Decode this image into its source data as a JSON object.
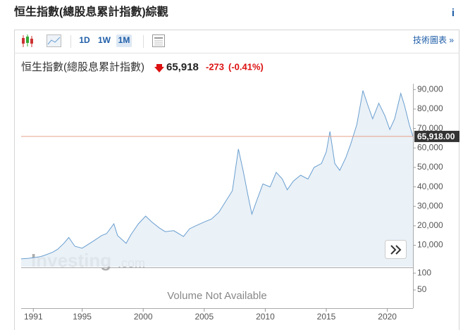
{
  "page": {
    "title": "恒生指數(總股息累計指數)綜觀",
    "info": "i"
  },
  "toolbar": {
    "ranges": [
      "1D",
      "1W",
      "1M"
    ],
    "active_range": 2,
    "advanced": "技術圖表 »"
  },
  "chart_data": {
    "type": "line",
    "instrument": "恒生指數(總股息累計指數)",
    "price": "65,918",
    "change": "-273",
    "change_pct": "(-0.41%)",
    "color": "#6a9fd0",
    "fill_color": "#e6eef6",
    "x": [
      1990.0,
      1990.6,
      1991.0,
      1991.6,
      1992.0,
      1992.6,
      1993.0,
      1993.5,
      1993.9,
      1994.4,
      1995.0,
      1995.5,
      1996.0,
      1996.6,
      1997.0,
      1997.6,
      1997.9,
      1998.6,
      1999.0,
      1999.6,
      2000.2,
      2000.7,
      2001.3,
      2001.8,
      2002.5,
      2003.3,
      2003.8,
      2004.3,
      2005.0,
      2005.6,
      2006.2,
      2006.8,
      2007.3,
      2007.8,
      2008.2,
      2008.6,
      2008.9,
      2009.3,
      2009.8,
      2010.4,
      2010.9,
      2011.4,
      2011.8,
      2012.3,
      2012.9,
      2013.5,
      2014.0,
      2014.6,
      2015.0,
      2015.3,
      2015.7,
      2016.1,
      2016.6,
      2017.0,
      2017.5,
      2018.0,
      2018.4,
      2018.8,
      2019.3,
      2019.8,
      2020.2,
      2020.6,
      2021.1,
      2021.4,
      2021.8,
      2022.1
    ],
    "values": [
      3000,
      3300,
      3600,
      4200,
      5000,
      6500,
      8000,
      11000,
      14000,
      9500,
      8500,
      10500,
      12500,
      15000,
      16000,
      21000,
      15000,
      11000,
      15500,
      21000,
      25000,
      22000,
      19000,
      17000,
      17500,
      14500,
      18500,
      20000,
      22000,
      23500,
      27000,
      33000,
      38000,
      59500,
      48000,
      35000,
      26000,
      33000,
      41500,
      40000,
      47500,
      44000,
      38500,
      43000,
      46000,
      44000,
      50000,
      52000,
      58000,
      68500,
      52000,
      48500,
      55000,
      62000,
      72000,
      89500,
      82000,
      75000,
      83000,
      76500,
      69500,
      75000,
      88000,
      82000,
      72000,
      65918
    ],
    "xlim": [
      1990.0,
      2022.1
    ],
    "xticks": [
      1991,
      1995,
      2000,
      2005,
      2010,
      2015,
      2020
    ],
    "ylim": [
      -1000,
      93000
    ],
    "yticks": [
      {
        "value": 10000,
        "label": "10,000"
      },
      {
        "value": 20000,
        "label": "20,000"
      },
      {
        "value": 30000,
        "label": "30,000"
      },
      {
        "value": 40000,
        "label": "40,000"
      },
      {
        "value": 50000,
        "label": "50,000"
      },
      {
        "value": 60000,
        "label": "60,000"
      },
      {
        "value": 70000,
        "label": "70,000"
      },
      {
        "value": 80000,
        "label": "80,000"
      },
      {
        "value": 90000,
        "label": "90,000"
      }
    ],
    "last_price": {
      "value": 65918,
      "label": "65,918.00"
    },
    "volume_ylim": [
      0,
      117
    ],
    "volume_yticks": [
      50,
      100
    ],
    "volume_note": "Volume Not Available",
    "watermark": [
      "Investing",
      ".com"
    ]
  }
}
